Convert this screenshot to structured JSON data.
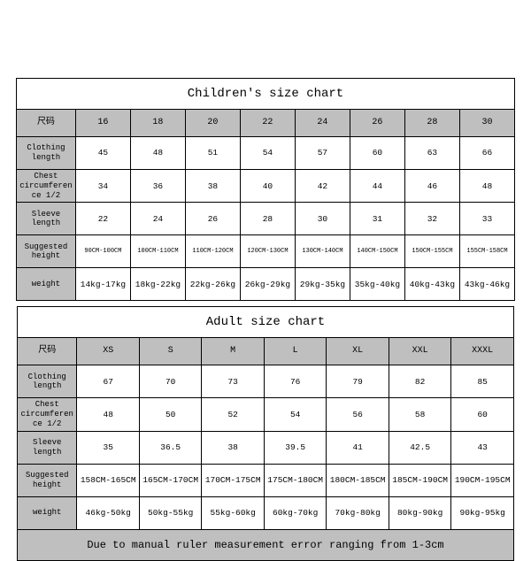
{
  "children_table": {
    "title": "Children's size chart",
    "row_label_header": "尺码",
    "sizes": [
      "16",
      "18",
      "20",
      "22",
      "24",
      "26",
      "28",
      "30"
    ],
    "rows": [
      {
        "label": "Clothing length",
        "values": [
          "45",
          "48",
          "51",
          "54",
          "57",
          "60",
          "63",
          "66"
        ]
      },
      {
        "label": "Chest circumference 1/2",
        "values": [
          "34",
          "36",
          "38",
          "40",
          "42",
          "44",
          "46",
          "48"
        ]
      },
      {
        "label": "Sleeve length",
        "values": [
          "22",
          "24",
          "26",
          "28",
          "30",
          "31",
          "32",
          "33"
        ]
      },
      {
        "label": "Suggested height",
        "values": [
          "90CM-100CM",
          "100CM-110CM",
          "110CM-120CM",
          "120CM-130CM",
          "130CM-140CM",
          "140CM-150CM",
          "150CM-155CM",
          "155CM-158CM"
        ],
        "small": true
      },
      {
        "label": "weight",
        "values": [
          "14kg-17kg",
          "18kg-22kg",
          "22kg-26kg",
          "26kg-29kg",
          "29kg-35kg",
          "35kg-40kg",
          "40kg-43kg",
          "43kg-46kg"
        ]
      }
    ]
  },
  "adult_table": {
    "title": "Adult size chart",
    "row_label_header": "尺码",
    "sizes": [
      "XS",
      "S",
      "M",
      "L",
      "XL",
      "XXL",
      "XXXL"
    ],
    "rows": [
      {
        "label": "Clothing length",
        "values": [
          "67",
          "70",
          "73",
          "76",
          "79",
          "82",
          "85"
        ]
      },
      {
        "label": "Chest circumference 1/2",
        "values": [
          "48",
          "50",
          "52",
          "54",
          "56",
          "58",
          "60"
        ]
      },
      {
        "label": "Sleeve length",
        "values": [
          "35",
          "36.5",
          "38",
          "39.5",
          "41",
          "42.5",
          "43"
        ]
      },
      {
        "label": "Suggested height",
        "values": [
          "158CM-165CM",
          "165CM-170CM",
          "170CM-175CM",
          "175CM-180CM",
          "180CM-185CM",
          "185CM-190CM",
          "190CM-195CM"
        ]
      },
      {
        "label": "weight",
        "values": [
          "46kg-50kg",
          "50kg-55kg",
          "55kg-60kg",
          "60kg-70kg",
          "70kg-80kg",
          "80kg-90kg",
          "90kg-95kg"
        ]
      }
    ],
    "note": "Due to manual ruler measurement error ranging from 1-3cm"
  },
  "style": {
    "header_bg": "#bfbfbf",
    "border_color": "#000000",
    "font_family": "Courier New"
  }
}
